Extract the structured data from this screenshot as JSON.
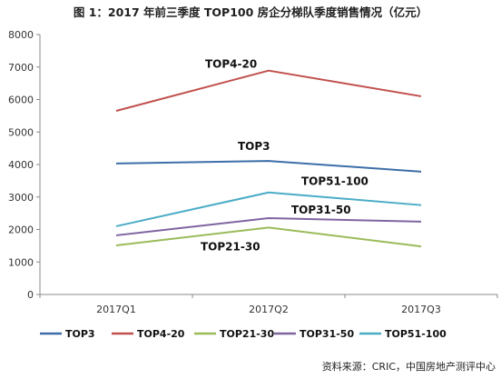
{
  "title": "图 1：2017 年前三季度 TOP100 房企分梯队季度销售情况（亿元）",
  "source": "资料来源：CRIC，中国房地产测评中心",
  "chart_data": {
    "type": "line",
    "title": "图 1：2017 年前三季度 TOP100 房企分梯队季度销售情况（亿元）",
    "xlabel": "",
    "ylabel": "",
    "categories": [
      "2017Q1",
      "2017Q2",
      "2017Q3"
    ],
    "ylim": [
      0,
      8000
    ],
    "yticks": [
      0,
      1000,
      2000,
      3000,
      4000,
      5000,
      6000,
      7000,
      8000
    ],
    "grid": false,
    "legend_position": "bottom",
    "series": [
      {
        "name": "TOP3",
        "values": [
          4030,
          4110,
          3780
        ],
        "color": "#3d6ea8",
        "label_at": 1
      },
      {
        "name": "TOP4-20",
        "values": [
          5650,
          6890,
          6100
        ],
        "color": "#c0504d",
        "label_at": 1
      },
      {
        "name": "TOP21-30",
        "values": [
          1510,
          2060,
          1480
        ],
        "color": "#9bbb59",
        "label_at": 1
      },
      {
        "name": "TOP31-50",
        "values": [
          1820,
          2350,
          2240
        ],
        "color": "#7f65a0",
        "label_at": 1
      },
      {
        "name": "TOP51-100",
        "values": [
          2100,
          3140,
          2750
        ],
        "color": "#4bacc6",
        "label_at": 1
      }
    ]
  }
}
